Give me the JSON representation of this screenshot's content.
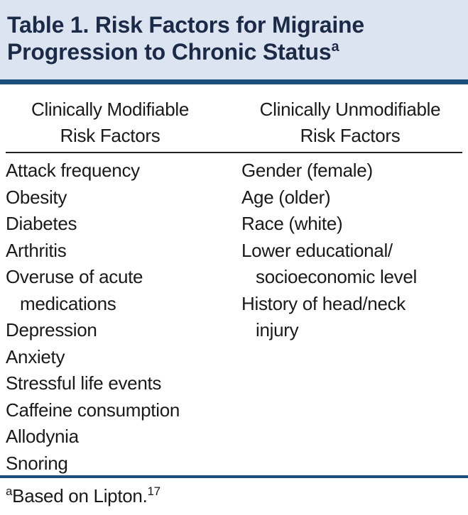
{
  "table": {
    "title": {
      "lines": [
        "Table 1. Risk Factors for Migraine",
        "Progression to Chronic Status"
      ],
      "superscript": "a"
    },
    "columns": [
      {
        "header": [
          "Clinically Modifiable",
          "Risk Factors"
        ],
        "items": [
          [
            "Attack frequency"
          ],
          [
            "Obesity"
          ],
          [
            "Diabetes"
          ],
          [
            "Arthritis"
          ],
          [
            "Overuse of acute",
            "medications"
          ],
          [
            "Depression"
          ],
          [
            "Anxiety"
          ],
          [
            "Stressful life events"
          ],
          [
            "Caffeine consumption"
          ],
          [
            "Allodynia"
          ],
          [
            "Snoring"
          ]
        ]
      },
      {
        "header": [
          "Clinically Unmodifiable",
          "Risk Factors"
        ],
        "items": [
          [
            "Gender (female)"
          ],
          [
            "Age (older)"
          ],
          [
            "Race (white)"
          ],
          [
            "Lower educational/",
            "socioeconomic level"
          ],
          [
            "History of head/neck",
            "injury"
          ]
        ]
      }
    ],
    "footnote": {
      "marker": "a",
      "text": "Based on Lipton.",
      "reference": "17"
    }
  }
}
